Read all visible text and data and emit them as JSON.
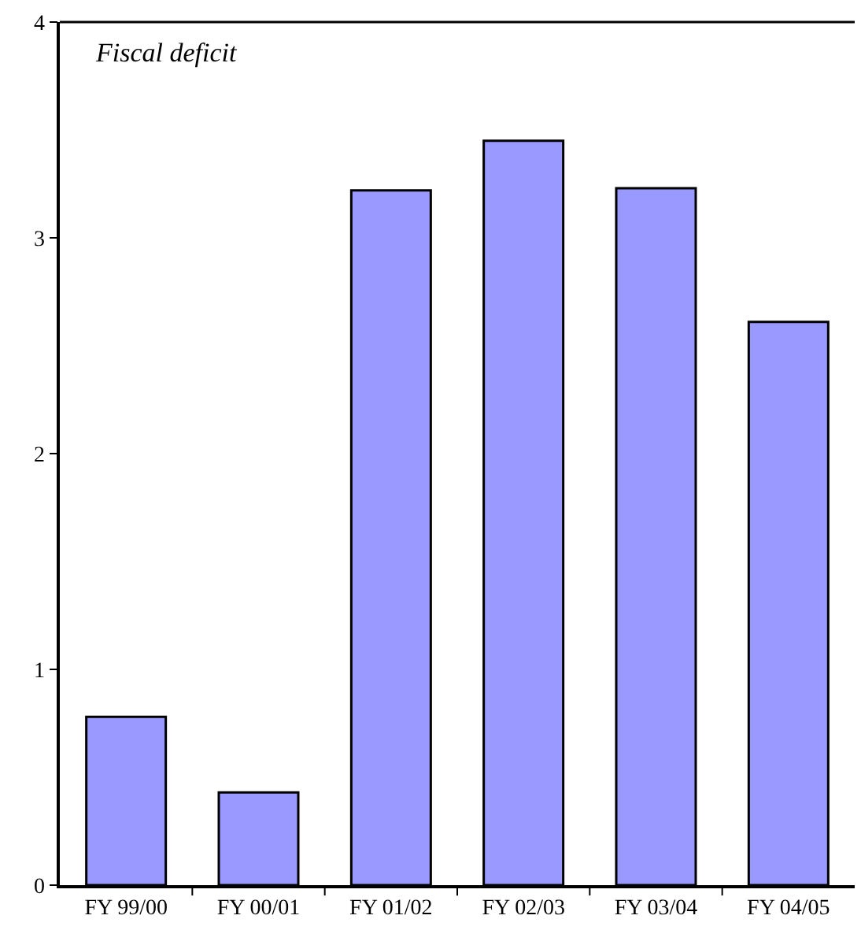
{
  "chart_data": {
    "type": "bar",
    "annotations": [
      "Fiscal deficit"
    ],
    "categories": [
      "FY 99/00",
      "FY 00/01",
      "FY 01/02",
      "FY 02/03",
      "FY 03/04",
      "FY 04/05"
    ],
    "values": [
      0.78,
      0.43,
      3.22,
      3.45,
      3.23,
      2.61
    ],
    "color": "#9999ff",
    "ylim": [
      0,
      4
    ],
    "yticks": [
      0,
      1,
      2,
      3,
      4
    ],
    "grid": false
  }
}
